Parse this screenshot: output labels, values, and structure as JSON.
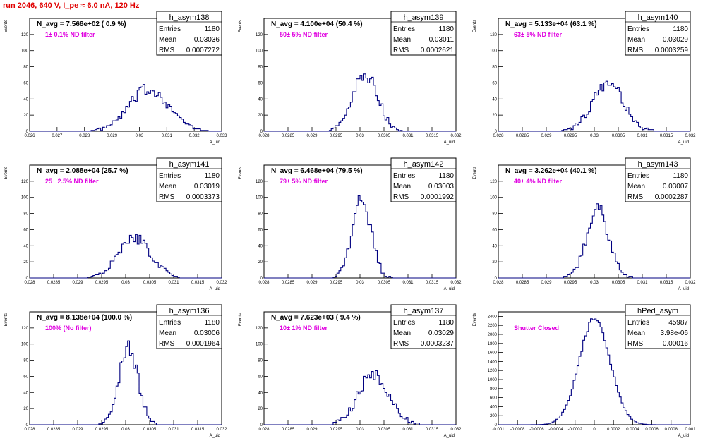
{
  "title": "run 2046,   640 V, I_pe ≈ 6.0 nA, 120 Hz",
  "chart_data": [
    {
      "type": "histogram",
      "name": "h_asym138",
      "navg": "N_avg = 7.568e+02 ( 0.9 %)",
      "filter": "1± 0.1% ND filter",
      "stats": {
        "Entries": "1180",
        "Mean": "0.03036",
        "RMS": "0.0007272"
      },
      "ylabel": "Events",
      "xlabel": "A_uid",
      "xlim": [
        0.026,
        0.033
      ],
      "ylim": [
        0,
        140
      ],
      "xticks": [
        "0.026",
        "0.027",
        "0.028",
        "0.029",
        "0.03",
        "0.031",
        "0.032",
        "0.033"
      ],
      "yticks": [
        "0",
        "20",
        "40",
        "60",
        "80",
        "100",
        "120"
      ],
      "mean": 0.03036,
      "rms": 0.0007272,
      "peak": 52,
      "nbins": 100
    },
    {
      "type": "histogram",
      "name": "h_asym139",
      "navg": "N_avg = 4.100e+04 (50.4 %)",
      "filter": "50± 5% ND filter",
      "stats": {
        "Entries": "1180",
        "Mean": "0.03011",
        "RMS": "0.0002621"
      },
      "ylabel": "Events",
      "xlabel": "A_uid",
      "xlim": [
        0.028,
        0.032
      ],
      "ylim": [
        0,
        140
      ],
      "xticks": [
        "0.028",
        "0.0285",
        "0.029",
        "0.0295",
        "0.03",
        "0.0305",
        "0.031",
        "0.0315",
        "0.032"
      ],
      "yticks": [
        "0",
        "20",
        "40",
        "60",
        "80",
        "100",
        "120"
      ],
      "mean": 0.03011,
      "rms": 0.0002621,
      "peak": 70,
      "nbins": 100
    },
    {
      "type": "histogram",
      "name": "h_asym140",
      "navg": "N_avg = 5.133e+04 (63.1 %)",
      "filter": "63± 5% ND filter",
      "stats": {
        "Entries": "1180",
        "Mean": "0.03029",
        "RMS": "0.0003259"
      },
      "ylabel": "Events",
      "xlabel": "A_uid",
      "xlim": [
        0.028,
        0.032
      ],
      "ylim": [
        0,
        140
      ],
      "xticks": [
        "0.028",
        "0.0285",
        "0.029",
        "0.0295",
        "0.03",
        "0.0305",
        "0.031",
        "0.0315",
        "0.032"
      ],
      "yticks": [
        "0",
        "20",
        "40",
        "60",
        "80",
        "100",
        "120"
      ],
      "mean": 0.03029,
      "rms": 0.0003259,
      "peak": 58,
      "nbins": 100
    },
    {
      "type": "histogram",
      "name": "h_asym141",
      "navg": "N_avg = 2.088e+04 (25.7 %)",
      "filter": "25± 2.5% ND filter",
      "stats": {
        "Entries": "1180",
        "Mean": "0.03019",
        "RMS": "0.0003373"
      },
      "ylabel": "Events",
      "xlabel": "A_uid",
      "xlim": [
        0.028,
        0.032
      ],
      "ylim": [
        0,
        140
      ],
      "xticks": [
        "0.028",
        "0.0285",
        "0.029",
        "0.0295",
        "0.03",
        "0.0305",
        "0.031",
        "0.0315",
        "0.032"
      ],
      "yticks": [
        "0",
        "20",
        "40",
        "60",
        "80",
        "100",
        "120"
      ],
      "mean": 0.03019,
      "rms": 0.0003373,
      "peak": 50,
      "nbins": 100
    },
    {
      "type": "histogram",
      "name": "h_asym142",
      "navg": "N_avg = 6.468e+04 (79.5 %)",
      "filter": "79± 5% ND filter",
      "stats": {
        "Entries": "1180",
        "Mean": "0.03003",
        "RMS": "0.0001992"
      },
      "ylabel": "Events",
      "xlabel": "A_uid",
      "xlim": [
        0.028,
        0.032
      ],
      "ylim": [
        0,
        140
      ],
      "xticks": [
        "0.028",
        "0.0285",
        "0.029",
        "0.0295",
        "0.03",
        "0.0305",
        "0.031",
        "0.0315",
        "0.032"
      ],
      "yticks": [
        "0",
        "20",
        "40",
        "60",
        "80",
        "100",
        "120"
      ],
      "mean": 0.03003,
      "rms": 0.0001992,
      "peak": 96,
      "nbins": 100
    },
    {
      "type": "histogram",
      "name": "h_asym143",
      "navg": "N_avg = 3.262e+04 (40.1 %)",
      "filter": "40± 4% ND filter",
      "stats": {
        "Entries": "1180",
        "Mean": "0.03007",
        "RMS": "0.0002287"
      },
      "ylabel": "Events",
      "xlabel": "A_uid",
      "xlim": [
        0.028,
        0.032
      ],
      "ylim": [
        0,
        140
      ],
      "xticks": [
        "0.028",
        "0.0285",
        "0.029",
        "0.0295",
        "0.03",
        "0.0305",
        "0.031",
        "0.0315",
        "0.032"
      ],
      "yticks": [
        "0",
        "20",
        "40",
        "60",
        "80",
        "100",
        "120"
      ],
      "mean": 0.03007,
      "rms": 0.0002287,
      "peak": 87,
      "nbins": 100
    },
    {
      "type": "histogram",
      "name": "h_asym136",
      "navg": "N_avg = 8.138e+04 (100.0 %)",
      "filter": "100% (No filter)",
      "stats": {
        "Entries": "1180",
        "Mean": "0.03006",
        "RMS": "0.0001964"
      },
      "ylabel": "Events",
      "xlabel": "A_uid",
      "xlim": [
        0.028,
        0.032
      ],
      "ylim": [
        0,
        140
      ],
      "xticks": [
        "0.028",
        "0.0285",
        "0.029",
        "0.0295",
        "0.03",
        "0.0305",
        "0.031",
        "0.0315",
        "0.032"
      ],
      "yticks": [
        "0",
        "20",
        "40",
        "60",
        "80",
        "100",
        "120"
      ],
      "mean": 0.03006,
      "rms": 0.0001964,
      "peak": 96,
      "nbins": 100
    },
    {
      "type": "histogram",
      "name": "h_asym137",
      "navg": "N_avg = 7.623e+03 ( 9.4 %)",
      "filter": "10± 1% ND filter",
      "stats": {
        "Entries": "1180",
        "Mean": "0.03029",
        "RMS": "0.0003237"
      },
      "ylabel": "Events",
      "xlabel": "A_uid",
      "xlim": [
        0.028,
        0.032
      ],
      "ylim": [
        0,
        140
      ],
      "xticks": [
        "0.028",
        "0.0285",
        "0.029",
        "0.0295",
        "0.03",
        "0.0305",
        "0.031",
        "0.0315",
        "0.032"
      ],
      "yticks": [
        "0",
        "20",
        "40",
        "60",
        "80",
        "100",
        "120"
      ],
      "mean": 0.03029,
      "rms": 0.0003237,
      "peak": 62,
      "nbins": 100
    },
    {
      "type": "histogram",
      "name": "hPed_asym",
      "navg": "",
      "filter": "Shutter Closed",
      "stats": {
        "Entries": "45987",
        "Mean": "3.98e-06",
        "RMS": "0.00016"
      },
      "ylabel": "Events",
      "xlabel": "A_uid",
      "xlim": [
        -0.001,
        0.001
      ],
      "ylim": [
        0,
        2500
      ],
      "xticks": [
        "-0.001",
        "-0.0008",
        "-0.0006",
        "-0.0004",
        "-0.0002",
        "0",
        "0.0002",
        "0.0004",
        "0.0006",
        "0.0008",
        "0.001"
      ],
      "yticks": [
        "0",
        "200",
        "400",
        "600",
        "800",
        "1000",
        "1200",
        "1400",
        "1600",
        "1800",
        "2000",
        "2200",
        "2400"
      ],
      "mean": 3.98e-06,
      "rms": 0.00016,
      "peak": 2350,
      "nbins": 100
    }
  ]
}
